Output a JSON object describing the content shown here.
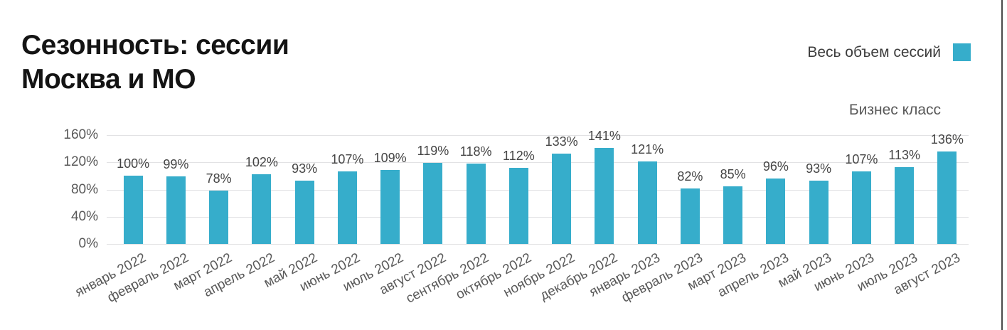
{
  "header": {
    "title": "Сезонность: сессии\nМосква и МО"
  },
  "legend": {
    "label": "Весь объем сессий",
    "swatch_color": "#36adcb"
  },
  "subtitle": "Бизнес класс",
  "chart_data": {
    "type": "bar",
    "title": "Сезонность: сессии Москва и МО",
    "series_name": "Весь объем сессий",
    "categories": [
      "январь 2022",
      "февраль 2022",
      "март 2022",
      "апрель 2022",
      "май 2022",
      "июнь 2022",
      "июль 2022",
      "август 2022",
      "сентябрь 2022",
      "октябрь 2022",
      "ноябрь 2022",
      "декабрь 2022",
      "январь 2023",
      "февраль 2023",
      "март 2023",
      "апрель 2023",
      "май 2023",
      "июнь 2023",
      "июль 2023",
      "август 2023"
    ],
    "values": [
      100,
      99,
      78,
      102,
      93,
      107,
      109,
      119,
      118,
      112,
      133,
      141,
      121,
      82,
      85,
      96,
      93,
      107,
      113,
      136
    ],
    "unit": "%",
    "xlabel": "",
    "ylabel": "",
    "ylim": [
      0,
      160
    ],
    "yticks": [
      0,
      40,
      80,
      120,
      160
    ],
    "ytick_labels": [
      "0%",
      "40%",
      "80%",
      "120%",
      "160%"
    ],
    "bar_color": "#36adcb",
    "grid": true,
    "legend_position": "top-right",
    "data_labels": true
  }
}
